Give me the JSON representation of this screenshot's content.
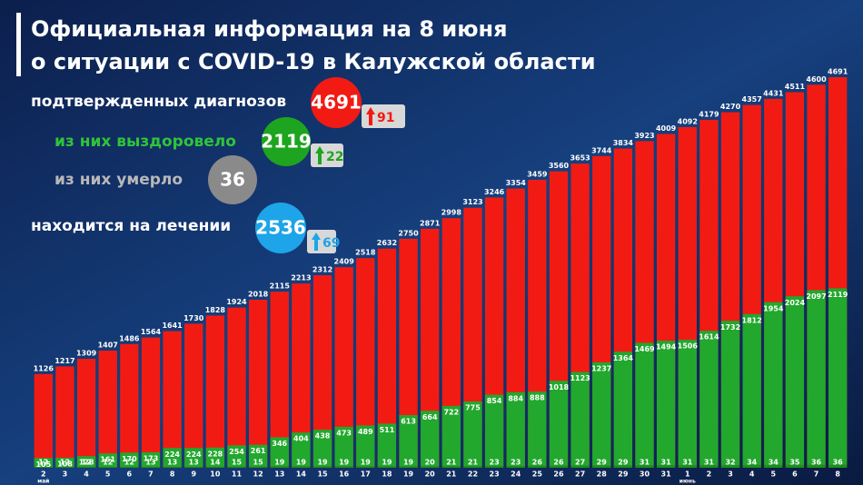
{
  "chart_data": {
    "type": "bar",
    "title_lines": [
      "Официальная информация на 8 июня",
      "о ситуации с COVID-19 в Калужской области"
    ],
    "categories": [
      "2",
      "3",
      "4",
      "5",
      "6",
      "7",
      "8",
      "9",
      "10",
      "11",
      "12",
      "13",
      "14",
      "15",
      "16",
      "17",
      "18",
      "19",
      "20",
      "21",
      "22",
      "23",
      "24",
      "25",
      "26",
      "27",
      "28",
      "29",
      "30",
      "31",
      "1",
      "2",
      "3",
      "4",
      "5",
      "6",
      "7",
      "8"
    ],
    "month_labels": [
      "май",
      null,
      null,
      null,
      null,
      null,
      null,
      null,
      null,
      null,
      null,
      null,
      null,
      null,
      null,
      null,
      null,
      null,
      null,
      null,
      null,
      null,
      null,
      null,
      null,
      null,
      null,
      null,
      null,
      null,
      "июнь",
      null,
      null,
      null,
      null,
      null,
      null,
      null
    ],
    "totals": {
      "color": "#f21b14",
      "values": [
        1126,
        1217,
        1309,
        1407,
        1486,
        1564,
        1641,
        1730,
        1828,
        1924,
        2018,
        2115,
        2213,
        2312,
        2409,
        2518,
        2632,
        2750,
        2871,
        2998,
        3123,
        3246,
        3354,
        3459,
        3560,
        3653,
        3744,
        3834,
        3923,
        4009,
        4092,
        4179,
        4270,
        4357,
        4431,
        4511,
        4600,
        4691
      ]
    },
    "series": [
      {
        "color": "#15921f",
        "values": [
          12,
          12,
          12,
          12,
          12,
          13,
          13,
          13,
          14,
          15,
          15,
          19,
          19,
          19,
          19,
          19,
          19,
          19,
          20,
          21,
          21,
          23,
          23,
          26,
          26,
          27,
          29,
          29,
          31,
          31,
          31,
          31,
          32,
          34,
          34,
          35,
          36,
          36
        ]
      },
      {
        "color": "#22a82d",
        "values": [
          105,
          108,
          128,
          161,
          170,
          173,
          224,
          224,
          228,
          254,
          261,
          346,
          404,
          438,
          473,
          489,
          511,
          613,
          664,
          722,
          775,
          854,
          884,
          888,
          1018,
          1123,
          1237,
          1364,
          1469,
          1494,
          1506,
          1614,
          1732,
          1812,
          1954,
          2024,
          2097,
          2119
        ]
      }
    ],
    "ylim": [
      0,
      4800
    ]
  },
  "summary": [
    {
      "label": "подтвержденных диагнозов",
      "value": 4691,
      "delta": 91,
      "color": "#f21b14"
    },
    {
      "label": "из них выздоровело",
      "value": 2119,
      "delta": 22,
      "color": "#1ea51f"
    },
    {
      "label": "из них умерло",
      "value": 36,
      "color": "#8a8a8a"
    },
    {
      "label": "находится на лечении",
      "value": 2536,
      "delta": 69,
      "color": "#1ea4e8"
    }
  ]
}
